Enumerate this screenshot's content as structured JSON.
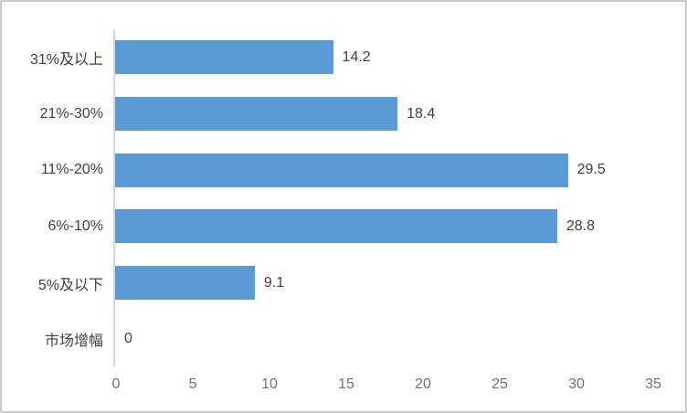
{
  "chart_data": {
    "type": "bar",
    "orientation": "horizontal",
    "title": "",
    "xlabel": "",
    "ylabel": "",
    "categories": [
      "31%及以上",
      "21%-30%",
      "11%-20%",
      "6%-10%",
      "5%及以下",
      "市场增幅"
    ],
    "values": [
      14.2,
      18.4,
      29.5,
      28.8,
      9.1,
      0
    ],
    "value_labels": [
      "14.2",
      "18.4",
      "29.5",
      "28.8",
      "9.1",
      "0"
    ],
    "xlim": [
      0,
      35
    ],
    "x_ticks": [
      0,
      5,
      10,
      15,
      20,
      25,
      30,
      35
    ],
    "grid": false,
    "legend": "none",
    "colors": {
      "bar": "#5b9bd5",
      "axis_line": "#d6d6d6",
      "category_label": "#404040",
      "value_label": "#404040",
      "tick_label": "#737373",
      "frame_border": "#c9c9c9",
      "background": "#ffffff"
    }
  }
}
